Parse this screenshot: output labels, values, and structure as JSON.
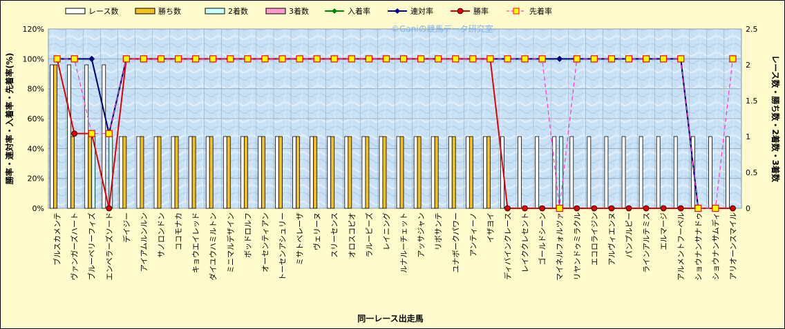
{
  "chart_data": {
    "type": "bar",
    "watermark": "©Ganiの競馬データ研究室",
    "xlabel": "同一レース出走馬",
    "ylabel_left": "勝率・連対率・入着率・先着率(%)",
    "ylabel_right": "レース数・勝ち数・2着数・3着数",
    "ylim_left": [
      0,
      120
    ],
    "ylim_right": [
      0,
      2.5
    ],
    "yticks_left": [
      "0%",
      "20%",
      "40%",
      "60%",
      "80%",
      "100%",
      "120%"
    ],
    "yticks_right": [
      "0",
      "0.5",
      "1",
      "1.5",
      "2",
      "2.5"
    ],
    "grid": true,
    "legend_position": "top",
    "categories": [
      "ブルスカメンテ",
      "ヴァンガーズハート",
      "ブルーベリーフィズ",
      "エンペラーズソード",
      "デイジー",
      "アイアムルンルン",
      "サノロンドン",
      "ココモナカ",
      "キョウエイレッド",
      "ダイユウハミルトン",
      "ミニマルデザイン",
      "ボッドロルフ",
      "オーセンティアン",
      "トーセンアシュリー",
      "ミサトベレーザ",
      "ヴェリーヌ",
      "スリーセンス",
      "オロスコピオ",
      "ラルーピーズ",
      "レイニング",
      "ルナルーチェット",
      "アッサジャン",
      "リボサンテ",
      "ユナボークパワー",
      "アンティーノ",
      "イザヨイ",
      "ディバインクレース",
      "レイククレセント",
      "ゴールドシーン",
      "マイネルフォルツァ",
      "リヤンドゥミラクル",
      "エコロライジン",
      "アルヴィエンヌ",
      "パンプルピー",
      "ラインアルテミス",
      "エルマージ",
      "アルメントフーベル",
      "ショウナンサナドゥ",
      "ショウナンサムディ",
      "アリオーンスマイル"
    ],
    "series": [
      {
        "name": "レース数",
        "axis": "right",
        "color": "#ffffff",
        "values": [
          2,
          2,
          2,
          2,
          1,
          1,
          1,
          1,
          1,
          1,
          1,
          1,
          1,
          1,
          1,
          1,
          1,
          1,
          1,
          1,
          1,
          1,
          1,
          1,
          1,
          1,
          1,
          1,
          1,
          1,
          1,
          1,
          1,
          1,
          1,
          1,
          1,
          1,
          1,
          1
        ]
      },
      {
        "name": "勝ち数",
        "axis": "right",
        "color": "#f0c020",
        "values": [
          2,
          1,
          1,
          0,
          1,
          1,
          1,
          1,
          1,
          1,
          1,
          1,
          1,
          1,
          1,
          1,
          1,
          1,
          1,
          1,
          1,
          1,
          1,
          1,
          1,
          1,
          0,
          0,
          0,
          0,
          0,
          0,
          0,
          0,
          0,
          0,
          0,
          0,
          0,
          0
        ]
      },
      {
        "name": "2着数",
        "axis": "right",
        "color": "#ccffff",
        "values": [
          0,
          0,
          1,
          1,
          0,
          0,
          0,
          0,
          0,
          0,
          0,
          0,
          0,
          0,
          0,
          0,
          0,
          0,
          0,
          0,
          0,
          0,
          0,
          0,
          0,
          0,
          0,
          0,
          0,
          1,
          0,
          0,
          0,
          0,
          0,
          0,
          0,
          0,
          0,
          0
        ]
      },
      {
        "name": "3着数",
        "axis": "right",
        "color": "#ff99cc",
        "values": [
          0,
          0,
          0,
          0,
          0,
          0,
          0,
          0,
          0,
          0,
          0,
          0,
          0,
          0,
          0,
          0,
          0,
          0,
          0,
          0,
          0,
          0,
          0,
          0,
          0,
          0,
          0,
          0,
          0,
          0,
          0,
          0,
          0,
          0,
          0,
          0,
          0,
          0,
          0,
          0
        ]
      },
      {
        "name": "入着率",
        "axis": "left",
        "color": "#008800",
        "values": [
          100,
          100,
          100,
          50,
          100,
          100,
          100,
          100,
          100,
          100,
          100,
          100,
          100,
          100,
          100,
          100,
          100,
          100,
          100,
          100,
          100,
          100,
          100,
          100,
          100,
          100,
          100,
          100,
          100,
          100,
          100,
          100,
          100,
          100,
          100,
          100,
          100,
          0,
          0,
          0
        ]
      },
      {
        "name": "連対率",
        "axis": "left",
        "color": "#000080",
        "values": [
          100,
          100,
          100,
          50,
          100,
          100,
          100,
          100,
          100,
          100,
          100,
          100,
          100,
          100,
          100,
          100,
          100,
          100,
          100,
          100,
          100,
          100,
          100,
          100,
          100,
          100,
          100,
          100,
          100,
          100,
          100,
          100,
          100,
          100,
          100,
          100,
          100,
          0,
          0,
          0
        ]
      },
      {
        "name": "勝率",
        "axis": "left",
        "color": "#e00000",
        "values": [
          100,
          50,
          50,
          0,
          100,
          100,
          100,
          100,
          100,
          100,
          100,
          100,
          100,
          100,
          100,
          100,
          100,
          100,
          100,
          100,
          100,
          100,
          100,
          100,
          100,
          100,
          0,
          0,
          0,
          0,
          0,
          0,
          0,
          0,
          0,
          0,
          0,
          0,
          0,
          0
        ]
      },
      {
        "name": "先着率",
        "axis": "left",
        "color": "#ff33cc",
        "values": [
          100,
          100,
          50,
          50,
          100,
          100,
          100,
          100,
          100,
          100,
          100,
          100,
          100,
          100,
          100,
          100,
          100,
          100,
          100,
          100,
          100,
          100,
          100,
          100,
          100,
          100,
          100,
          100,
          100,
          0,
          100,
          100,
          100,
          100,
          100,
          100,
          100,
          0,
          0,
          100
        ]
      }
    ]
  }
}
